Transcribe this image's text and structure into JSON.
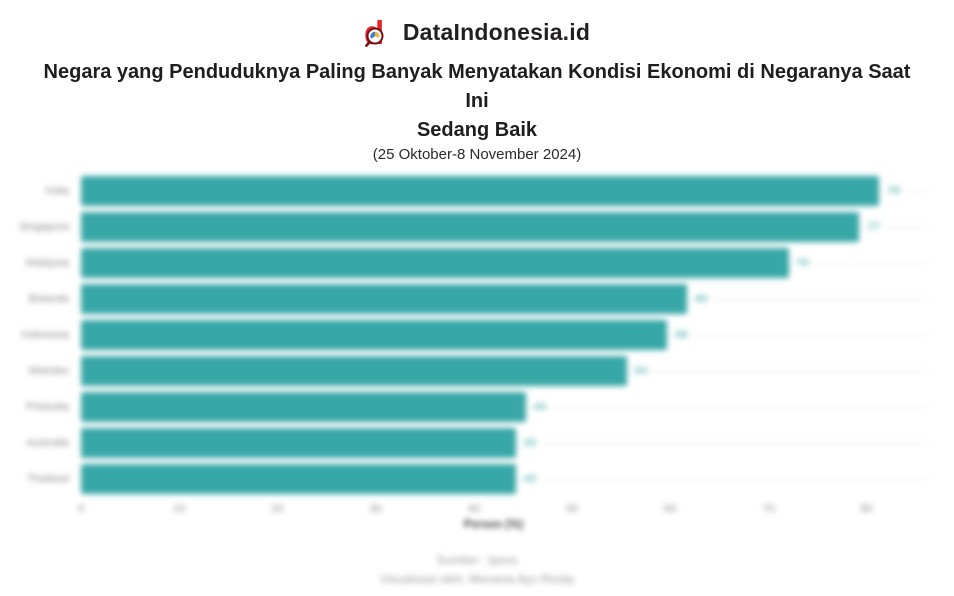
{
  "header": {
    "brand": "DataIndonesia.id",
    "logo_icon": "dataindonesia-magnifier-d-logo",
    "title_line1": "Negara yang Penduduknya Paling Banyak Menyatakan Kondisi Ekonomi di Negaranya Saat Ini",
    "title_line2": "Sedang Baik",
    "subtitle": "(25 Oktober-8 November 2024)"
  },
  "chart_data": {
    "type": "bar",
    "orientation": "horizontal",
    "title": "Negara yang Penduduknya Paling Banyak Menyatakan Kondisi Ekonomi di Negaranya Saat Ini Sedang Baik",
    "subtitle": "(25 Oktober-8 November 2024)",
    "categories": [
      "India",
      "Singapura",
      "Malaysia",
      "Belanda",
      "Indonesia",
      "Meksiko",
      "Polandia",
      "Australia",
      "Thailand"
    ],
    "values": [
      79,
      77,
      70,
      60,
      58,
      54,
      44,
      43,
      43
    ],
    "xlabel": "Persen (%)",
    "ylabel": "",
    "xlim": [
      0,
      84
    ],
    "xticks": [
      0,
      10,
      20,
      30,
      40,
      50,
      60,
      70,
      80
    ],
    "grid": "horizontal category gridlines, no vertical gridlines",
    "legend": "none",
    "bar_color": "#38a7a7",
    "value_label_color": "#6fc0c0",
    "category_label_color": "#8c8c8c"
  },
  "footer": {
    "source": "Sumber : Ipsos",
    "credit": "Visualisasi oleh: Monavia Ayu Rizaty"
  }
}
